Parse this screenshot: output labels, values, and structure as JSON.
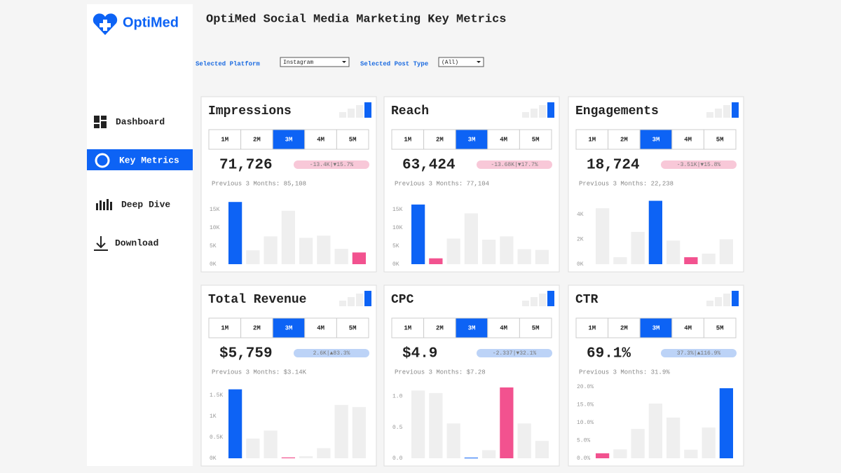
{
  "sidebar": {
    "logo": "OptiMed",
    "nav": [
      "Dashboard",
      "Key Metrics",
      "Deep Dive",
      "Download"
    ]
  },
  "header": {
    "title": "OptiMed Social Media Marketing Key Metrics"
  },
  "filters": {
    "platform_label": "Selected Platform",
    "platform": "Instagram",
    "post_type_label": "Selected Post Type",
    "post_type": "(All)"
  },
  "periods": [
    "1M",
    "2M",
    "3M",
    "4M",
    "5M"
  ],
  "chart_data": [
    {
      "type": "bar",
      "title": "Impressions",
      "kpi": "71,726",
      "delta": "-13.4K|▼15.7%",
      "delta_color": "#f8c8d8",
      "previous": "Previous 3 Months: 85,108",
      "values": [
        17,
        3.8,
        7.6,
        14.6,
        7.2,
        7.8,
        4.2,
        3.2
      ],
      "colors": [
        "#0d63f5",
        "#efefef",
        "#efefef",
        "#efefef",
        "#efefef",
        "#efefef",
        "#efefef",
        "#f2528f"
      ],
      "ylim": [
        0,
        18
      ],
      "yticks": [
        {
          "value": 0,
          "label": "0K"
        },
        {
          "value": 5,
          "label": "5K"
        },
        {
          "value": 10,
          "label": "10K"
        },
        {
          "value": 15,
          "label": "15K"
        }
      ]
    },
    {
      "type": "bar",
      "title": "Reach",
      "kpi": "63,424",
      "delta": "-13.68K|▼17.7%",
      "delta_color": "#f8c8d8",
      "previous": "Previous 3 Months: 77,104",
      "values": [
        16.3,
        1.6,
        7,
        13.9,
        6.7,
        7.6,
        4.1,
        3.9
      ],
      "colors": [
        "#0d63f5",
        "#f2528f",
        "#efefef",
        "#efefef",
        "#efefef",
        "#efefef",
        "#efefef",
        "#efefef"
      ],
      "ylim": [
        0,
        18
      ],
      "yticks": [
        {
          "value": 0,
          "label": "0K"
        },
        {
          "value": 5,
          "label": "5K"
        },
        {
          "value": 10,
          "label": "10K"
        },
        {
          "value": 15,
          "label": "15K"
        }
      ]
    },
    {
      "type": "bar",
      "title": "Engagements",
      "kpi": "18,724",
      "delta": "-3.51K|▼15.8%",
      "delta_color": "#f8c8d8",
      "previous": "Previous 3 Months: 22,238",
      "values": [
        4.5,
        0.56,
        2.6,
        5.1,
        1.9,
        0.56,
        0.85,
        2
      ],
      "colors": [
        "#efefef",
        "#efefef",
        "#efefef",
        "#0d63f5",
        "#efefef",
        "#f2528f",
        "#efefef",
        "#efefef"
      ],
      "ylim": [
        0,
        5.3
      ],
      "yticks": [
        {
          "value": 0,
          "label": "0K"
        },
        {
          "value": 2,
          "label": "2K"
        },
        {
          "value": 4,
          "label": "4K"
        }
      ]
    },
    {
      "type": "bar",
      "title": "Total Revenue",
      "kpi": "$5,759",
      "delta": "2.6K|▲83.3%",
      "delta_color": "#bcd3f7",
      "previous": "Previous 3 Months: $3.14K",
      "values": [
        1.64,
        0.47,
        0.66,
        0.02,
        0.05,
        0.24,
        1.27,
        1.22
      ],
      "colors": [
        "#0d63f5",
        "#efefef",
        "#efefef",
        "#f2528f",
        "#efefef",
        "#efefef",
        "#efefef",
        "#efefef"
      ],
      "ylim": [
        0,
        1.7
      ],
      "yticks": [
        {
          "value": 0,
          "label": "0K"
        },
        {
          "value": 0.5,
          "label": "0.5K"
        },
        {
          "value": 1,
          "label": "1K"
        },
        {
          "value": 1.5,
          "label": "1.5K"
        }
      ]
    },
    {
      "type": "bar",
      "title": "CPC",
      "kpi": "$4.9",
      "delta": "-2.337|▼32.1%",
      "delta_color": "#bcd3f7",
      "previous": "Previous 3 Months: $7.28",
      "values": [
        1.09,
        1.05,
        0.56,
        0.01,
        0.13,
        1.14,
        0.56,
        0.28
      ],
      "colors": [
        "#efefef",
        "#efefef",
        "#efefef",
        "#0d63f5",
        "#efefef",
        "#f2528f",
        "#efefef",
        "#efefef"
      ],
      "ylim": [
        0,
        1.15
      ],
      "yticks": [
        {
          "value": 0,
          "label": "0.0"
        },
        {
          "value": 0.5,
          "label": "0.5"
        },
        {
          "value": 1,
          "label": "1.0"
        }
      ]
    },
    {
      "type": "bar",
      "title": "CTR",
      "kpi": "69.1%",
      "delta": "37.3%|▲116.9%",
      "delta_color": "#bcd3f7",
      "previous": "Previous 3 Months: 31.9%",
      "values": [
        1.4,
        2.5,
        8.2,
        15.3,
        11.4,
        2.4,
        8.6,
        19.6
      ],
      "colors": [
        "#f2528f",
        "#efefef",
        "#efefef",
        "#efefef",
        "#efefef",
        "#efefef",
        "#efefef",
        "#0d63f5"
      ],
      "ylim": [
        0,
        20
      ],
      "yticks": [
        {
          "value": 0,
          "label": "0.0%"
        },
        {
          "value": 5,
          "label": "5.0%"
        },
        {
          "value": 10,
          "label": "10.0%"
        },
        {
          "value": 15,
          "label": "15.0%"
        },
        {
          "value": 20,
          "label": "20.0%"
        }
      ]
    }
  ]
}
